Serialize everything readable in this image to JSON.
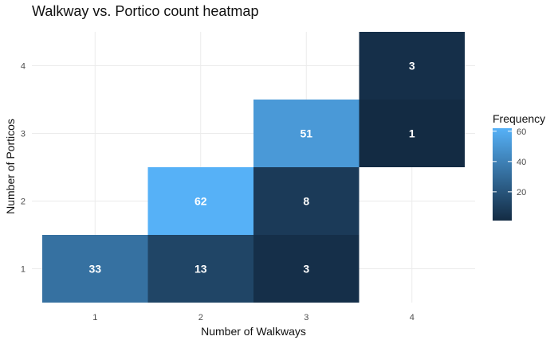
{
  "chart_data": {
    "type": "heatmap",
    "title": "Walkway vs. Portico count heatmap",
    "xlabel": "Number of Walkways",
    "ylabel": "Number of Porticos",
    "x_ticks": [
      1,
      2,
      3,
      4
    ],
    "y_ticks": [
      1,
      2,
      3,
      4
    ],
    "xlim": [
      0.5,
      4.5
    ],
    "ylim": [
      0.5,
      4.5
    ],
    "grid": true,
    "cells": [
      {
        "x": 1,
        "y": 1,
        "value": 33
      },
      {
        "x": 2,
        "y": 1,
        "value": 13
      },
      {
        "x": 3,
        "y": 1,
        "value": 3
      },
      {
        "x": 2,
        "y": 2,
        "value": 62
      },
      {
        "x": 3,
        "y": 2,
        "value": 8
      },
      {
        "x": 3,
        "y": 3,
        "value": 51
      },
      {
        "x": 4,
        "y": 3,
        "value": 1
      },
      {
        "x": 4,
        "y": 4,
        "value": 3
      }
    ],
    "legend": {
      "title": "Frequency",
      "position": "right",
      "ticks": [
        20,
        40,
        60
      ],
      "range": [
        1,
        62
      ],
      "color_low": "#132b43",
      "color_high": "#56b1f7"
    }
  }
}
